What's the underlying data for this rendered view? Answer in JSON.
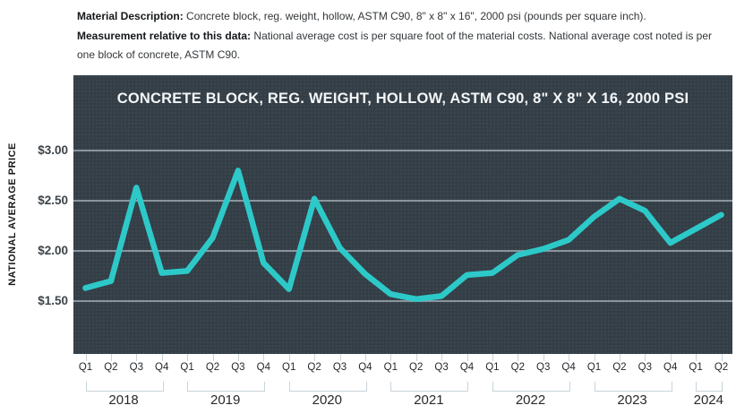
{
  "description": {
    "material_label": "Material Description:",
    "material_text": "Concrete block, reg. weight, hollow, ASTM C90, 8\" x 8\" x 16\", 2000 psi (pounds per square inch).",
    "measurement_label": "Measurement relative to this data:",
    "measurement_text": "National average cost is per square foot of the material costs. National average cost noted is per one block of concrete, ASTM C90."
  },
  "chart_data": {
    "type": "line",
    "title": "CONCRETE BLOCK, REG. WEIGHT, HOLLOW, ASTM C90, 8\" X 8\" X 16, 2000 PSI",
    "ylabel": "NATIONAL AVERAGE PRICE",
    "xlabel": "",
    "grid": "horizontal",
    "legend": "none",
    "ylim": [
      0.98,
      3.75
    ],
    "y_ticks": [
      {
        "label": "$3.00",
        "value": 3.0
      },
      {
        "label": "$2.50",
        "value": 2.5
      },
      {
        "label": "$2.00",
        "value": 2.0
      },
      {
        "label": "$1.50",
        "value": 1.5
      }
    ],
    "categories": [
      "Q1",
      "Q2",
      "Q3",
      "Q4",
      "Q1",
      "Q2",
      "Q3",
      "Q4",
      "Q1",
      "Q2",
      "Q3",
      "Q4",
      "Q1",
      "Q2",
      "Q3",
      "Q4",
      "Q1",
      "Q2",
      "Q3",
      "Q4",
      "Q1",
      "Q2",
      "Q3",
      "Q4",
      "Q1",
      "Q2"
    ],
    "year_groups": [
      {
        "label": "2018",
        "count": 4
      },
      {
        "label": "2019",
        "count": 4
      },
      {
        "label": "2020",
        "count": 4
      },
      {
        "label": "2021",
        "count": 4
      },
      {
        "label": "2022",
        "count": 4
      },
      {
        "label": "2023",
        "count": 4
      },
      {
        "label": "2024",
        "count": 2
      }
    ],
    "series": [
      {
        "name": "National average price",
        "values": [
          1.63,
          1.7,
          2.63,
          1.78,
          1.8,
          2.13,
          2.8,
          1.88,
          1.62,
          2.52,
          2.03,
          1.77,
          1.57,
          1.52,
          1.55,
          1.76,
          1.78,
          1.96,
          2.02,
          2.11,
          2.34,
          2.52,
          2.4,
          2.08,
          2.22,
          2.36
        ]
      }
    ],
    "colors": {
      "line": "#2dc9c9",
      "panel_background": "#333e47",
      "gridline": "#9aa4aa",
      "title_text": "#f4f6f7",
      "axis_text": "#3c4449",
      "tick_mark": "#c9d4d9"
    }
  }
}
